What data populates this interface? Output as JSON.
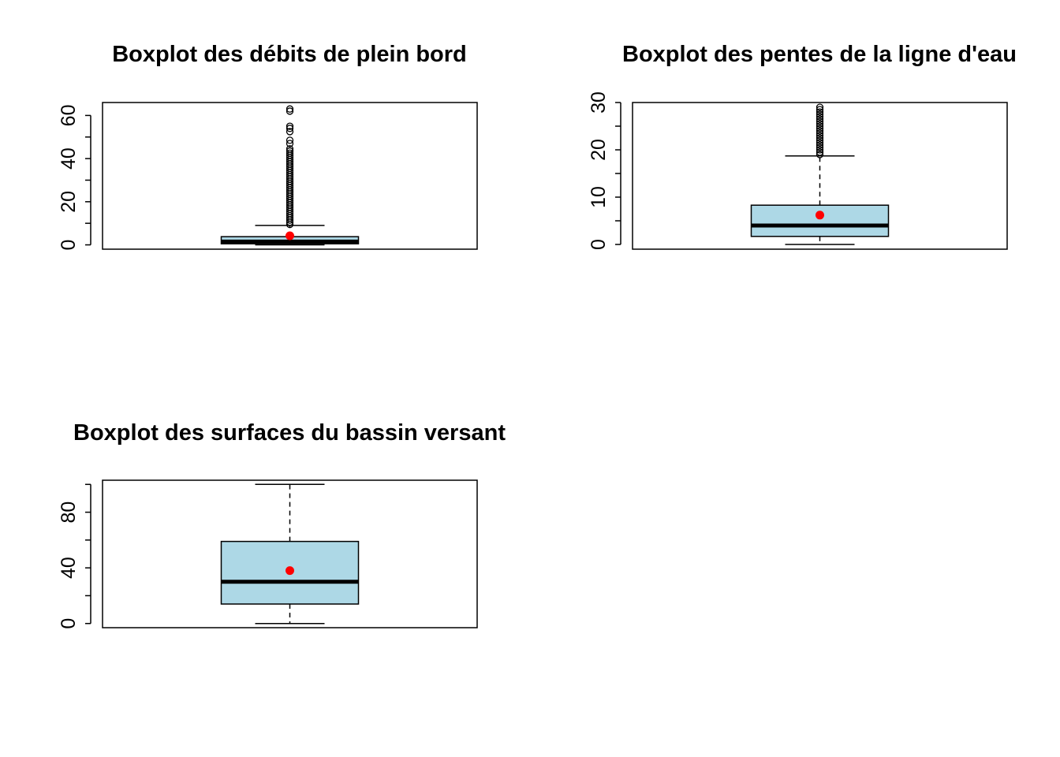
{
  "chart_data": [
    {
      "type": "boxplot",
      "title": "Boxplot des débits de plein bord",
      "xlabel": "",
      "ylabel": "",
      "ylim": [
        -2,
        66
      ],
      "yticks": [
        0,
        20,
        40,
        60
      ],
      "yminor": [
        10,
        30,
        50
      ],
      "box": {
        "min": 0,
        "q1": 0.5,
        "median": 1.5,
        "q3": 3.8,
        "max": 9,
        "mean": 4.2
      },
      "outliers": [
        9.5,
        10.5,
        11.5,
        12.5,
        13.5,
        14.5,
        15.5,
        16.5,
        17.5,
        18.5,
        19.5,
        20.5,
        21.5,
        22.5,
        23.5,
        24.5,
        25.5,
        26.5,
        27.5,
        28.5,
        29.5,
        30.5,
        31.5,
        32.5,
        33.5,
        34.5,
        35.5,
        36.5,
        37.5,
        38.5,
        39.5,
        40.5,
        41.5,
        42.5,
        43.5,
        44.5,
        47,
        48.5,
        52.5,
        54,
        55,
        62,
        63
      ]
    },
    {
      "type": "boxplot",
      "title": "Boxplot des pentes de la ligne d'eau",
      "xlabel": "",
      "ylabel": "",
      "ylim": [
        -1,
        30
      ],
      "yticks": [
        0,
        10,
        20,
        30
      ],
      "yminor": [
        5,
        15,
        25
      ],
      "box": {
        "min": 0,
        "q1": 1.7,
        "median": 4.0,
        "q3": 8.3,
        "max": 18.7,
        "mean": 6.2
      },
      "outliers": [
        19.0,
        19.5,
        20.0,
        20.5,
        21.0,
        21.5,
        22.0,
        22.5,
        23.0,
        23.5,
        24.0,
        24.5,
        25.0,
        25.5,
        26.0,
        26.5,
        27.0,
        27.5,
        28.0,
        28.5,
        29.0
      ]
    },
    {
      "type": "boxplot",
      "title": "Boxplot des surfaces du bassin versant",
      "xlabel": "",
      "ylabel": "",
      "ylim": [
        -3,
        103
      ],
      "yticks": [
        0,
        40,
        80
      ],
      "yminor": [
        20,
        60,
        100
      ],
      "box": {
        "min": 0,
        "q1": 14,
        "median": 30,
        "q3": 59,
        "max": 100,
        "mean": 38
      },
      "outliers": []
    }
  ],
  "colors": {
    "box_fill": "#add8e6",
    "mean_marker": "#ff0000",
    "line": "#000000"
  }
}
